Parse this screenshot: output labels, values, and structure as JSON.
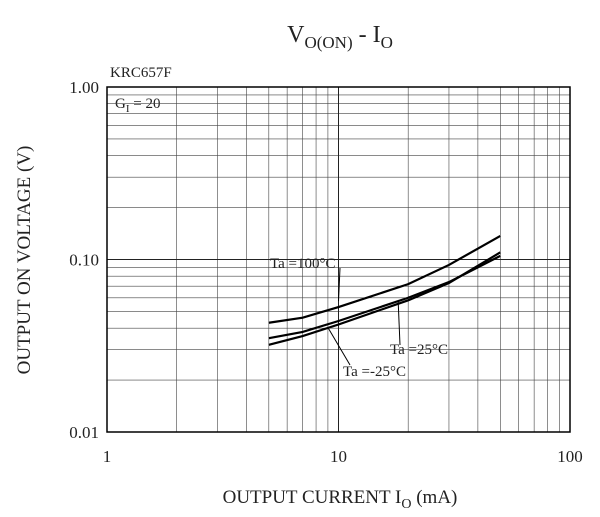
{
  "chart_data": {
    "type": "line",
    "title": [
      "V",
      "O(ON)",
      " - I",
      "O"
    ],
    "x_label": [
      "OUTPUT CURRENT  I",
      "O",
      " (mA)"
    ],
    "y_label": "OUTPUT ON VOLTAGE  (V)",
    "annotations": {
      "part": "KRC657F",
      "gain": [
        "G",
        "I",
        " = 20"
      ]
    },
    "log_x": true,
    "log_y": true,
    "grid": true,
    "xlim": [
      1,
      100
    ],
    "xticks": [
      1,
      10,
      100
    ],
    "ylim": [
      0.01,
      1
    ],
    "yticks": [
      {
        "value": 1,
        "label": "1.00"
      },
      {
        "value": 0.1,
        "label": "0.10"
      },
      0.01
    ],
    "x": [
      5,
      7,
      10,
      20,
      30,
      50
    ],
    "series": [
      {
        "name": "Ta =100°C",
        "color": "#000000",
        "values": [
          0.043,
          0.046,
          0.053,
          0.072,
          0.093,
          0.137
        ]
      },
      {
        "name": "Ta =25°C",
        "color": "#000000",
        "values": [
          0.035,
          0.038,
          0.044,
          0.06,
          0.074,
          0.105
        ]
      },
      {
        "name": "Ta =-25°C",
        "color": "#000000",
        "values": [
          0.032,
          0.036,
          0.042,
          0.058,
          0.073,
          0.11
        ]
      }
    ]
  }
}
